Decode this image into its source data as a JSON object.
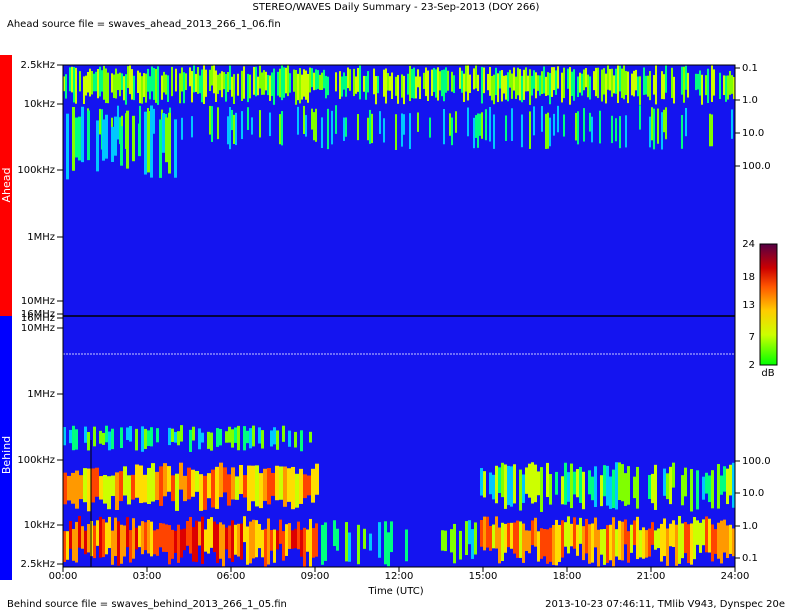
{
  "header": {
    "title": "STEREO/WAVES Daily Summary - 23-Sep-2013 (DOY 266)",
    "ahead_file": "Ahead source file = swaves_ahead_2013_266_1_06.fin"
  },
  "footer": {
    "behind_file": "Behind source file = swaves_behind_2013_266_1_05.fin",
    "stamp": "2013-10-23 07:46:11, TMlib V943, Dynspec 20e"
  },
  "panels": [
    {
      "label": "Ahead",
      "freq_labels": [
        "2.5kHz",
        "10kHz",
        "100kHz",
        "1MHz",
        "10MHz",
        "16MHz"
      ],
      "right_labels": [
        "0.1",
        "1.0",
        "10.0",
        "100.0"
      ]
    },
    {
      "label": "Behind",
      "freq_labels": [
        "16MHz",
        "10MHz",
        "1MHz",
        "100kHz",
        "10kHz",
        "2.5kHz"
      ],
      "right_labels": [
        "100.0",
        "10.0",
        "1.0",
        "0.1"
      ]
    }
  ],
  "time_axis": {
    "title": "Time (UTC)",
    "labels": [
      "00:00",
      "03:00",
      "06:00",
      "09:00",
      "12:00",
      "15:00",
      "18:00",
      "21:00",
      "24:00"
    ]
  },
  "colorbar": {
    "labels": [
      "24",
      "18",
      "13",
      "7",
      "2"
    ],
    "unit": "dB"
  }
}
